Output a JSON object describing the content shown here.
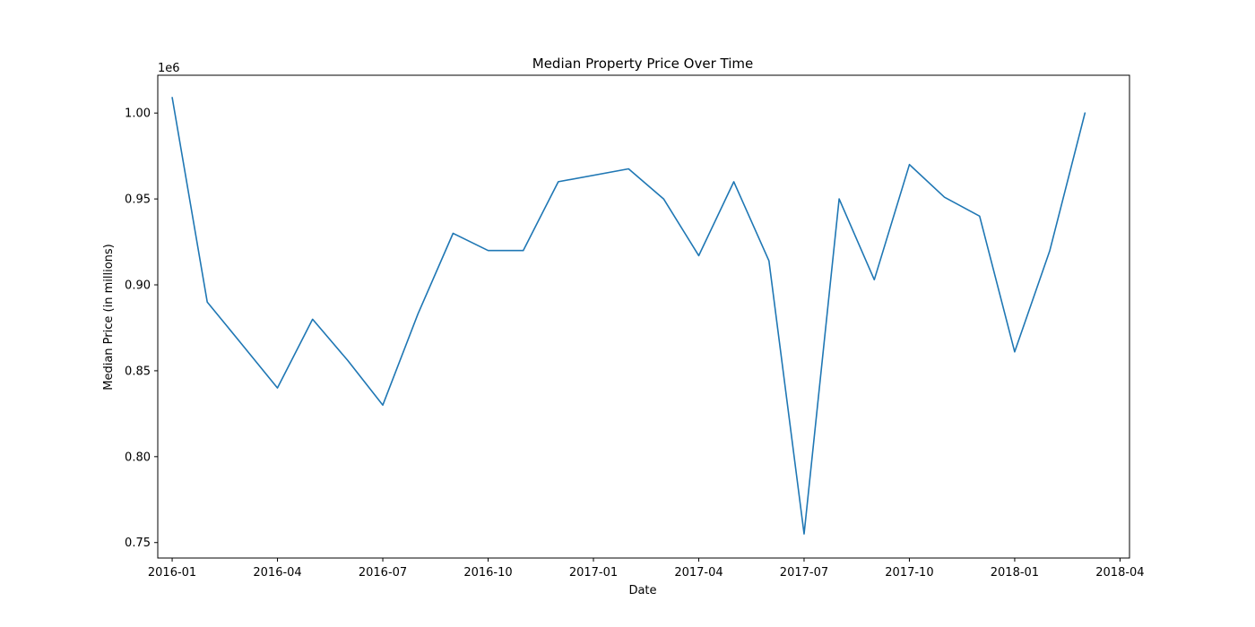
{
  "chart_data": {
    "type": "line",
    "title": "Median Property Price Over Time",
    "xlabel": "Date",
    "ylabel": "Median Price (in millions)",
    "y_offset_label": "1e6",
    "grid": false,
    "x_ticks": [
      "2016-01",
      "2016-04",
      "2016-07",
      "2016-10",
      "2017-01",
      "2017-04",
      "2017-07",
      "2017-10",
      "2018-01",
      "2018-04"
    ],
    "y_ticks": [
      "0.75",
      "0.80",
      "0.85",
      "0.90",
      "0.95",
      "1.00"
    ],
    "xlim": [
      "2015-12",
      "2018-04"
    ],
    "ylim": [
      741000,
      1022000
    ],
    "series": [
      {
        "color": "#1f77b4",
        "points": [
          {
            "x": "2016-01",
            "y": 1009000
          },
          {
            "x": "2016-02",
            "y": 890000
          },
          {
            "x": "2016-03",
            "y": 865000
          },
          {
            "x": "2016-04",
            "y": 840000
          },
          {
            "x": "2016-05",
            "y": 880000
          },
          {
            "x": "2016-06",
            "y": 856000
          },
          {
            "x": "2016-07",
            "y": 830000
          },
          {
            "x": "2016-08",
            "y": 883000
          },
          {
            "x": "2016-09",
            "y": 930000
          },
          {
            "x": "2016-10",
            "y": 920000
          },
          {
            "x": "2016-11",
            "y": 920000
          },
          {
            "x": "2016-12",
            "y": 960000
          },
          {
            "x": "2017-02",
            "y": 967500
          },
          {
            "x": "2017-03",
            "y": 950000
          },
          {
            "x": "2017-04",
            "y": 917000
          },
          {
            "x": "2017-05",
            "y": 960000
          },
          {
            "x": "2017-06",
            "y": 914000
          },
          {
            "x": "2017-07",
            "y": 755000
          },
          {
            "x": "2017-08",
            "y": 950000
          },
          {
            "x": "2017-09",
            "y": 903000
          },
          {
            "x": "2017-10",
            "y": 970000
          },
          {
            "x": "2017-11",
            "y": 951000
          },
          {
            "x": "2017-12",
            "y": 940000
          },
          {
            "x": "2018-01",
            "y": 861000
          },
          {
            "x": "2018-02",
            "y": 920000
          },
          {
            "x": "2018-03",
            "y": 1000000
          }
        ]
      }
    ]
  }
}
